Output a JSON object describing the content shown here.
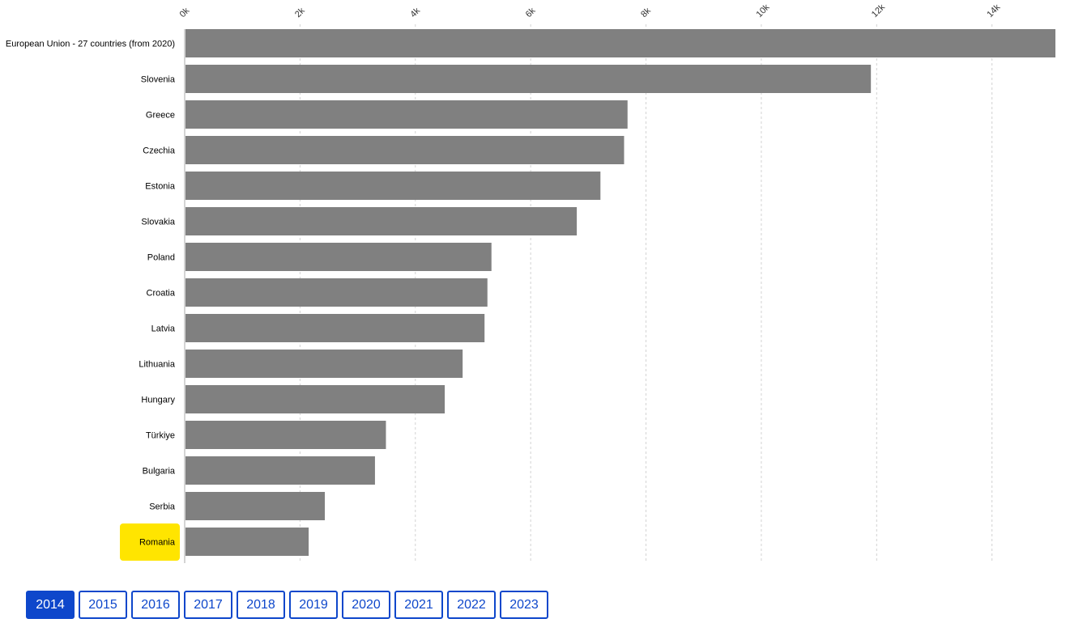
{
  "chart_data": {
    "type": "bar",
    "orientation": "horizontal",
    "categories": [
      "European Union - 27 countries (from 2020)",
      "Slovenia",
      "Greece",
      "Czechia",
      "Estonia",
      "Slovakia",
      "Poland",
      "Croatia",
      "Latvia",
      "Lithuania",
      "Hungary",
      "Türkiye",
      "Bulgaria",
      "Serbia",
      "Romania"
    ],
    "values": [
      15100,
      11900,
      7680,
      7620,
      7210,
      6800,
      5320,
      5250,
      5200,
      4820,
      4510,
      3490,
      3300,
      2430,
      2150
    ],
    "highlighted_category": "Romania",
    "highlight_color": "#ffe500",
    "bar_color": "#808080",
    "xlim": [
      0,
      15100
    ],
    "xticks": [
      0,
      2000,
      4000,
      6000,
      8000,
      10000,
      12000,
      14000
    ],
    "xtick_labels": [
      "0k",
      "2k",
      "4k",
      "6k",
      "8k",
      "10k",
      "12k",
      "14k"
    ],
    "xaxis_position": "top",
    "grid": true,
    "title": "",
    "xlabel": "",
    "ylabel": ""
  },
  "year_selector": {
    "years": [
      "2014",
      "2015",
      "2016",
      "2017",
      "2018",
      "2019",
      "2020",
      "2021",
      "2022",
      "2023"
    ],
    "selected": "2014",
    "accent_color": "#0e47cb"
  }
}
